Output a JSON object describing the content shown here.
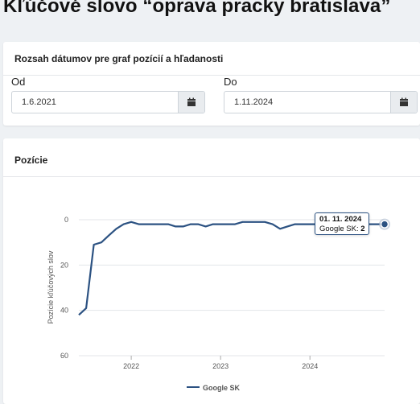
{
  "page": {
    "title": "Kľúčové slovo “oprava pracky bratislava”"
  },
  "date_range": {
    "header": "Rozsah dátumov pre graf pozícií a hľadanosti",
    "from": {
      "label": "Od",
      "value": "1.6.2021",
      "icon": "calendar-icon"
    },
    "to": {
      "label": "Do",
      "value": "1.11.2024",
      "icon": "calendar-icon"
    }
  },
  "position_card": {
    "header": "Pozície"
  },
  "tooltip": {
    "date": "01. 11. 2024",
    "series": "Google SK:",
    "value": "2"
  },
  "colors": {
    "line": "#2c5282",
    "grid": "#e3e6ea",
    "background": "#eef1f4"
  },
  "chart_data": {
    "type": "line",
    "title": "",
    "xlabel": "",
    "ylabel": "Pozície kľúčových slov",
    "y_reversed": true,
    "ylim": [
      0,
      60
    ],
    "xlim": [
      "2021-06-01",
      "2024-11-01"
    ],
    "y_ticks": [
      "0",
      "20",
      "40",
      "60"
    ],
    "x_ticks": [
      "2022",
      "2023",
      "2024"
    ],
    "legend": "bottom",
    "grid": true,
    "series": [
      {
        "name": "Google SK",
        "x": [
          "2021-06-01",
          "2021-07-01",
          "2021-08-01",
          "2021-09-01",
          "2021-10-01",
          "2021-11-01",
          "2021-12-01",
          "2022-01-01",
          "2022-02-01",
          "2022-03-01",
          "2022-04-01",
          "2022-05-01",
          "2022-06-01",
          "2022-07-01",
          "2022-08-01",
          "2022-09-01",
          "2022-10-01",
          "2022-11-01",
          "2022-12-01",
          "2023-01-01",
          "2023-02-01",
          "2023-03-01",
          "2023-04-01",
          "2023-05-01",
          "2023-06-01",
          "2023-07-01",
          "2023-08-01",
          "2023-09-01",
          "2023-10-01",
          "2023-11-01",
          "2023-12-01",
          "2024-01-01",
          "2024-02-01",
          "2024-03-01",
          "2024-04-01",
          "2024-05-01",
          "2024-06-01",
          "2024-07-01",
          "2024-08-01",
          "2024-09-01",
          "2024-10-01",
          "2024-11-01"
        ],
        "values": [
          42,
          39,
          11,
          10,
          7,
          4,
          2,
          1,
          2,
          2,
          2,
          2,
          2,
          3,
          3,
          2,
          2,
          3,
          2,
          2,
          2,
          2,
          1,
          1,
          1,
          1,
          2,
          4,
          3,
          2,
          2,
          2,
          2,
          2,
          2,
          2,
          2,
          2,
          2,
          2,
          2,
          2
        ]
      }
    ]
  }
}
